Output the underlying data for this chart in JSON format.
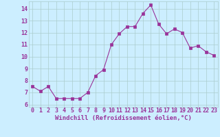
{
  "x": [
    0,
    1,
    2,
    3,
    4,
    5,
    6,
    7,
    8,
    9,
    10,
    11,
    12,
    13,
    14,
    15,
    16,
    17,
    18,
    19,
    20,
    21,
    22,
    23
  ],
  "y": [
    7.5,
    7.1,
    7.5,
    6.5,
    6.5,
    6.5,
    6.5,
    7.0,
    8.4,
    8.9,
    11.0,
    11.9,
    12.5,
    12.5,
    13.6,
    14.3,
    12.7,
    11.9,
    12.3,
    12.0,
    10.7,
    10.9,
    10.4,
    10.1
  ],
  "line_color": "#993399",
  "marker": "s",
  "marker_size": 2.5,
  "bg_color": "#cceeff",
  "grid_color": "#aacccc",
  "xlabel": "Windchill (Refroidissement éolien,°C)",
  "xlabel_color": "#993399",
  "xlabel_fontsize": 6.5,
  "tick_label_color": "#993399",
  "tick_fontsize": 6,
  "xlim": [
    -0.5,
    23.5
  ],
  "ylim": [
    5.8,
    14.6
  ],
  "yticks": [
    6,
    7,
    8,
    9,
    10,
    11,
    12,
    13,
    14
  ],
  "xticks": [
    0,
    1,
    2,
    3,
    4,
    5,
    6,
    7,
    8,
    9,
    10,
    11,
    12,
    13,
    14,
    15,
    16,
    17,
    18,
    19,
    20,
    21,
    22,
    23
  ]
}
